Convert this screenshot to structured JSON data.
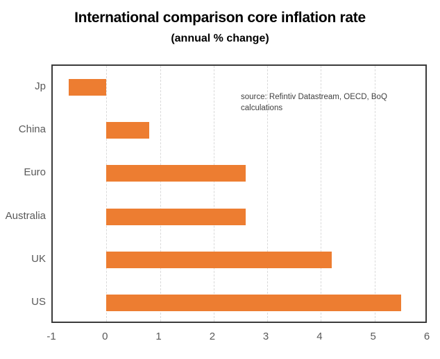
{
  "title": "International comparison core inflation rate",
  "subtitle": "(annual % change)",
  "annotation": "source:  Refintiv Datastream, OECD, BoQ calculations",
  "colors": {
    "bar": "#ED7D31",
    "grid": "#d9d9d9",
    "plot_border": "#3a3a3a",
    "axis_label": "#595959",
    "title_text": "#000000"
  },
  "chart_data": {
    "type": "bar",
    "orientation": "horizontal",
    "title": "International comparison core inflation rate",
    "subtitle": "(annual % change)",
    "categories": [
      "Jp",
      "China",
      "Euro",
      "Australia",
      "UK",
      "US"
    ],
    "values": [
      -0.7,
      0.8,
      2.6,
      2.6,
      4.2,
      5.5
    ],
    "xlabel": "",
    "ylabel": "",
    "xlim": [
      -1,
      6
    ],
    "xticks": [
      -1,
      0,
      1,
      2,
      3,
      4,
      5,
      6
    ],
    "gridline_ticks": [
      0,
      1,
      2,
      3,
      4,
      5
    ],
    "grid": true,
    "legend": false,
    "annotation": "source:  Refintiv Datastream, OECD, BoQ calculations",
    "bar_color": "#ED7D31"
  }
}
